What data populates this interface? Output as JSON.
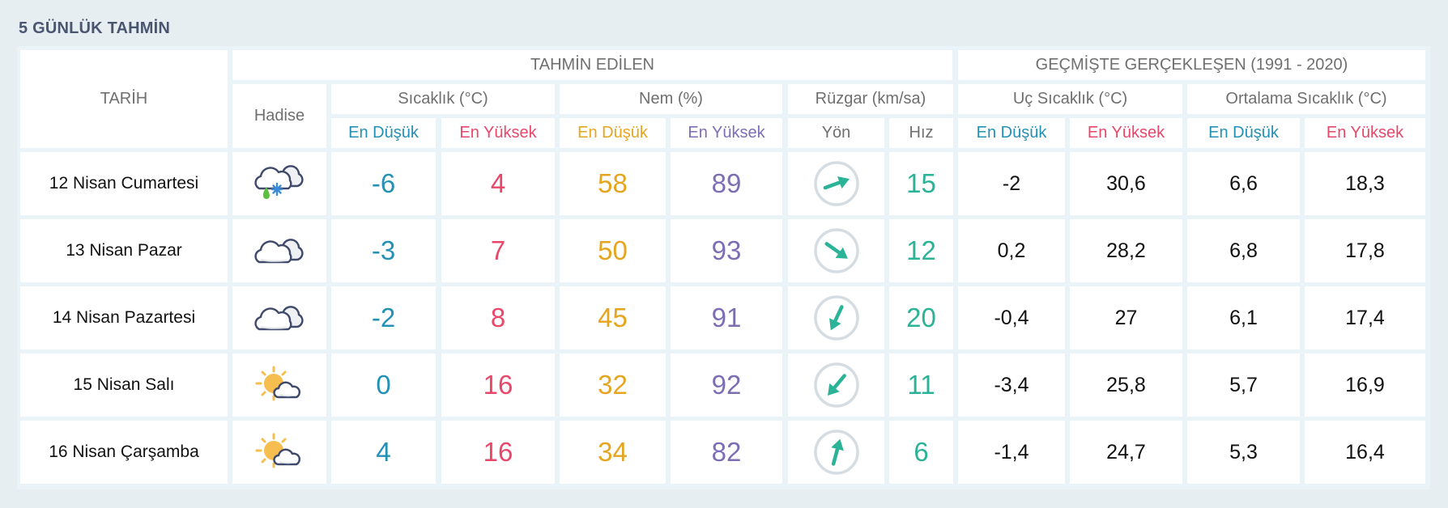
{
  "title": "5 GÜNLÜK TAHMİN",
  "colors": {
    "low": "#2390b6",
    "high": "#e8476a",
    "humidity_low": "#e6a51f",
    "humidity_high": "#7d6eb4",
    "wind": "#2ab397",
    "header_text": "#6f6f6f",
    "page_bg": "#e6eef2"
  },
  "header": {
    "date": "TARİH",
    "forecast_group": "TAHMİN EDİLEN",
    "history_group": "GEÇMİŞTE GERÇEKLEŞEN (1991 - 2020)",
    "event": "Hadise",
    "temperature": "Sıcaklık (°C)",
    "humidity": "Nem (%)",
    "wind": "Rüzgar (km/sa)",
    "extreme_temp": "Uç Sıcaklık (°C)",
    "avg_temp": "Ortalama Sıcaklık (°C)",
    "low": "En Düşük",
    "high": "En Yüksek",
    "direction": "Yön",
    "speed": "Hız"
  },
  "rows": [
    {
      "date": "12 Nisan Cumartesi",
      "icon": "cloud-rain-snow-icon",
      "temp_low": "-6",
      "temp_high": "4",
      "hum_low": "58",
      "hum_high": "89",
      "wind_dir_deg": 70,
      "wind_speed": "15",
      "ext_low": "-2",
      "ext_high": "30,6",
      "avg_low": "6,6",
      "avg_high": "18,3"
    },
    {
      "date": "13 Nisan Pazar",
      "icon": "cloudy-icon",
      "temp_low": "-3",
      "temp_high": "7",
      "hum_low": "50",
      "hum_high": "93",
      "wind_dir_deg": 125,
      "wind_speed": "12",
      "ext_low": "0,2",
      "ext_high": "28,2",
      "avg_low": "6,8",
      "avg_high": "17,8"
    },
    {
      "date": "14 Nisan Pazartesi",
      "icon": "cloudy-icon",
      "temp_low": "-2",
      "temp_high": "8",
      "hum_low": "45",
      "hum_high": "91",
      "wind_dir_deg": 205,
      "wind_speed": "20",
      "ext_low": "-0,4",
      "ext_high": "27",
      "avg_low": "6,1",
      "avg_high": "17,4"
    },
    {
      "date": "15 Nisan Salı",
      "icon": "partly-cloudy-icon",
      "temp_low": "0",
      "temp_high": "16",
      "hum_low": "32",
      "hum_high": "92",
      "wind_dir_deg": 220,
      "wind_speed": "11",
      "ext_low": "-3,4",
      "ext_high": "25,8",
      "avg_low": "5,7",
      "avg_high": "16,9"
    },
    {
      "date": "16 Nisan Çarşamba",
      "icon": "partly-cloudy-icon",
      "temp_low": "4",
      "temp_high": "16",
      "hum_low": "34",
      "hum_high": "82",
      "wind_dir_deg": 15,
      "wind_speed": "6",
      "ext_low": "-1,4",
      "ext_high": "24,7",
      "avg_low": "5,3",
      "avg_high": "16,4"
    }
  ]
}
